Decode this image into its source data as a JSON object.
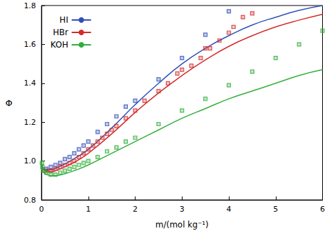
{
  "chart_data": {
    "type": "line",
    "x_label": "m/(mol kg⁻¹)",
    "y_label": "Φ",
    "xlim": [
      0,
      6
    ],
    "xticks": [
      0,
      1,
      2,
      3,
      4,
      5,
      6
    ],
    "ylim": [
      0.8,
      1.8
    ],
    "yticks": [
      0.8,
      {
        "value": 1,
        "label": "1.0"
      },
      1.2,
      1.4,
      1.6,
      1.8
    ],
    "grid": false,
    "legend": "upper left",
    "series": [
      {
        "name": "HI",
        "color": "#2f4fb8",
        "type": "line",
        "line_style": "solid",
        "x": [
          0,
          0.02,
          0.05,
          0.1,
          0.2,
          0.3,
          0.5,
          0.75,
          1,
          1.5,
          2,
          2.5,
          3,
          3.5,
          4,
          4.5,
          5,
          5.5,
          6
        ],
        "values": [
          1.0,
          0.97,
          0.96,
          0.955,
          0.955,
          0.962,
          0.985,
          1.02,
          1.06,
          1.17,
          1.29,
          1.4,
          1.5,
          1.58,
          1.645,
          1.7,
          1.74,
          1.775,
          1.8
        ],
        "data_points": {
          "marker": "square",
          "x": [
            0.1,
            0.2,
            0.3,
            0.4,
            0.5,
            0.6,
            0.7,
            0.8,
            0.9,
            1.0,
            1.2,
            1.4,
            1.6,
            1.8,
            2.0,
            2.5,
            3.0,
            3.5,
            4.0
          ],
          "values": [
            0.96,
            0.97,
            0.98,
            0.99,
            1.01,
            1.02,
            1.04,
            1.06,
            1.08,
            1.1,
            1.15,
            1.19,
            1.23,
            1.28,
            1.31,
            1.42,
            1.53,
            1.65,
            1.77
          ]
        }
      },
      {
        "name": "HBr",
        "color": "#d42a2a",
        "type": "line",
        "line_style": "solid",
        "x": [
          0,
          0.02,
          0.05,
          0.1,
          0.2,
          0.3,
          0.5,
          0.75,
          1,
          1.5,
          2,
          2.5,
          3,
          3.5,
          4,
          4.5,
          5,
          5.5,
          6
        ],
        "values": [
          1.0,
          0.965,
          0.955,
          0.948,
          0.945,
          0.95,
          0.97,
          1.0,
          1.04,
          1.14,
          1.25,
          1.35,
          1.44,
          1.52,
          1.59,
          1.645,
          1.69,
          1.725,
          1.755
        ],
        "data_points": {
          "marker": "square",
          "x": [
            0.1,
            0.2,
            0.3,
            0.4,
            0.5,
            0.6,
            0.7,
            0.8,
            0.9,
            1.0,
            1.1,
            1.2,
            1.3,
            1.4,
            1.5,
            1.6,
            1.8,
            2.0,
            2.2,
            2.5,
            2.7,
            2.9,
            3.0,
            3.2,
            3.4,
            3.5,
            3.6,
            3.8,
            4.0,
            4.1,
            4.3,
            4.5
          ],
          "values": [
            0.95,
            0.95,
            0.96,
            0.97,
            0.98,
            0.99,
            1.0,
            1.02,
            1.04,
            1.06,
            1.08,
            1.1,
            1.12,
            1.14,
            1.16,
            1.18,
            1.22,
            1.26,
            1.31,
            1.36,
            1.4,
            1.45,
            1.47,
            1.49,
            1.53,
            1.58,
            1.58,
            1.62,
            1.66,
            1.69,
            1.74,
            1.76
          ]
        }
      },
      {
        "name": "KOH",
        "color": "#2fae3a",
        "type": "line",
        "line_style": "solid",
        "x": [
          0,
          0.02,
          0.05,
          0.1,
          0.2,
          0.3,
          0.5,
          0.75,
          1,
          1.5,
          2,
          2.5,
          3,
          3.5,
          4,
          4.5,
          5,
          5.5,
          6
        ],
        "values": [
          1.0,
          0.955,
          0.94,
          0.932,
          0.925,
          0.925,
          0.935,
          0.955,
          0.98,
          1.04,
          1.1,
          1.16,
          1.22,
          1.27,
          1.32,
          1.36,
          1.4,
          1.44,
          1.47
        ],
        "data_points": {
          "marker": "square",
          "x": [
            0.01,
            0.02,
            0.05,
            0.1,
            0.2,
            0.3,
            0.4,
            0.5,
            0.6,
            0.7,
            0.8,
            0.9,
            1.0,
            1.2,
            1.4,
            1.6,
            1.8,
            2.0,
            2.5,
            3.0,
            3.5,
            4.0,
            4.5,
            5.0,
            5.5,
            6.0
          ],
          "values": [
            0.99,
            0.97,
            0.95,
            0.94,
            0.93,
            0.93,
            0.94,
            0.95,
            0.96,
            0.97,
            0.98,
            0.99,
            1.0,
            1.02,
            1.05,
            1.07,
            1.1,
            1.12,
            1.19,
            1.26,
            1.32,
            1.39,
            1.46,
            1.53,
            1.6,
            1.67
          ]
        }
      }
    ]
  }
}
